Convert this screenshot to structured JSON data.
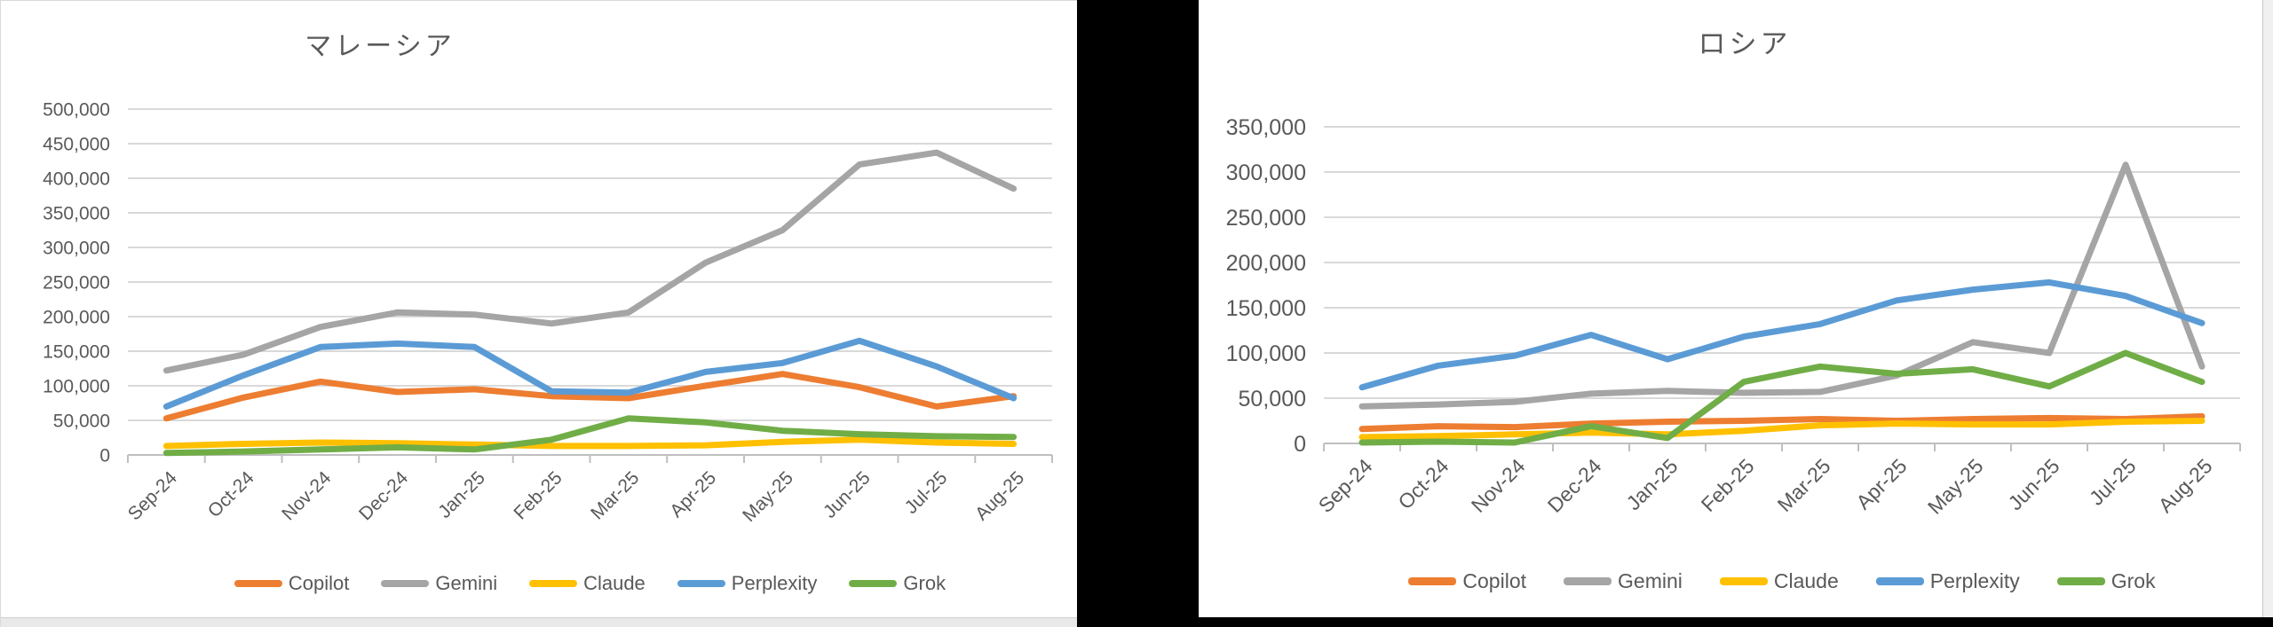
{
  "chart_data": [
    {
      "type": "line",
      "title": "マレーシア",
      "categories": [
        "Sep-24",
        "Oct-24",
        "Nov-24",
        "Dec-24",
        "Jan-25",
        "Feb-25",
        "Mar-25",
        "Apr-25",
        "May-25",
        "Jun-25",
        "Jul-25",
        "Aug-25"
      ],
      "series": [
        {
          "name": "Copilot",
          "color": "#ED7D31",
          "values": [
            53000,
            83000,
            106000,
            91000,
            95000,
            85000,
            82000,
            100000,
            117000,
            98000,
            70000,
            85000
          ]
        },
        {
          "name": "Gemini",
          "color": "#A5A5A5",
          "values": [
            122000,
            145000,
            185000,
            206000,
            203000,
            190000,
            206000,
            278000,
            325000,
            420000,
            437000,
            385000
          ]
        },
        {
          "name": "Claude",
          "color": "#FFC000",
          "values": [
            13000,
            16000,
            18000,
            17000,
            15000,
            13000,
            13000,
            14000,
            19000,
            22000,
            18000,
            16000
          ]
        },
        {
          "name": "Perplexity",
          "color": "#5B9BD5",
          "values": [
            70000,
            115000,
            156000,
            161000,
            156000,
            92000,
            90000,
            120000,
            133000,
            165000,
            128000,
            82000
          ]
        },
        {
          "name": "Grok",
          "color": "#70AD47",
          "values": [
            3000,
            5000,
            8000,
            11000,
            8000,
            22000,
            53000,
            47000,
            35000,
            30000,
            27000,
            26000
          ]
        }
      ],
      "ylim": [
        0,
        500000
      ],
      "ytick_step": 50000,
      "grid": true,
      "legend_position": "bottom"
    },
    {
      "type": "line",
      "title": "ロシア",
      "categories": [
        "Sep-24",
        "Oct-24",
        "Nov-24",
        "Dec-24",
        "Jan-25",
        "Feb-25",
        "Mar-25",
        "Apr-25",
        "May-25",
        "Jun-25",
        "Jul-25",
        "Aug-25"
      ],
      "series": [
        {
          "name": "Copilot",
          "color": "#ED7D31",
          "values": [
            16000,
            19000,
            18000,
            22000,
            24000,
            25000,
            27000,
            25000,
            27000,
            28000,
            27000,
            30000
          ]
        },
        {
          "name": "Gemini",
          "color": "#A5A5A5",
          "values": [
            41000,
            43000,
            46000,
            55000,
            58000,
            56000,
            57000,
            75000,
            112000,
            100000,
            308000,
            85000
          ]
        },
        {
          "name": "Claude",
          "color": "#FFC000",
          "values": [
            7000,
            8000,
            10000,
            12000,
            10000,
            14000,
            20000,
            22000,
            21000,
            21000,
            24000,
            25000
          ]
        },
        {
          "name": "Perplexity",
          "color": "#5B9BD5",
          "values": [
            62000,
            86000,
            97000,
            120000,
            93000,
            118000,
            132000,
            158000,
            170000,
            178000,
            163000,
            133000
          ]
        },
        {
          "name": "Grok",
          "color": "#70AD47",
          "values": [
            1000,
            2000,
            1000,
            19000,
            6000,
            68000,
            85000,
            77000,
            82000,
            63000,
            100000,
            68000
          ]
        }
      ],
      "ylim": [
        0,
        350000
      ],
      "ytick_step": 50000,
      "grid": true,
      "legend_position": "bottom"
    }
  ],
  "text_color": "#595959",
  "gridline_color": "#D9D9D9",
  "axis_line_color": "#BFBFBF"
}
